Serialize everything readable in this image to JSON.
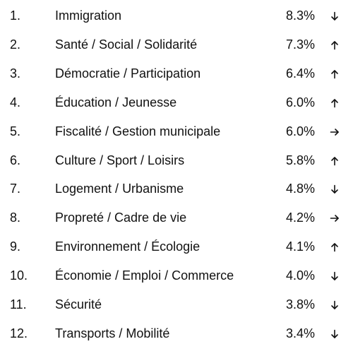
{
  "rows": [
    {
      "rank": "1.",
      "topic": "Immigration",
      "share": "8.3%",
      "trend": "down"
    },
    {
      "rank": "2.",
      "topic": "Santé / Social / Solidarité",
      "share": "7.3%",
      "trend": "up"
    },
    {
      "rank": "3.",
      "topic": "Démocratie / Participation",
      "share": "6.4%",
      "trend": "up"
    },
    {
      "rank": "4.",
      "topic": "Éducation / Jeunesse",
      "share": "6.0%",
      "trend": "up"
    },
    {
      "rank": "5.",
      "topic": "Fiscalité / Gestion municipale",
      "share": "6.0%",
      "trend": "right"
    },
    {
      "rank": "6.",
      "topic": "Culture / Sport / Loisirs",
      "share": "5.8%",
      "trend": "up"
    },
    {
      "rank": "7.",
      "topic": "Logement / Urbanisme",
      "share": "4.8%",
      "trend": "down"
    },
    {
      "rank": "8.",
      "topic": "Propreté / Cadre de vie",
      "share": "4.2%",
      "trend": "right"
    },
    {
      "rank": "9.",
      "topic": "Environnement / Écologie",
      "share": "4.1%",
      "trend": "up"
    },
    {
      "rank": "10.",
      "topic": "Économie / Emploi / Commerce",
      "share": "4.0%",
      "trend": "down"
    },
    {
      "rank": "11.",
      "topic": "Sécurité",
      "share": "3.8%",
      "trend": "down"
    },
    {
      "rank": "12.",
      "topic": "Transports / Mobilité",
      "share": "3.4%",
      "trend": "down"
    }
  ]
}
